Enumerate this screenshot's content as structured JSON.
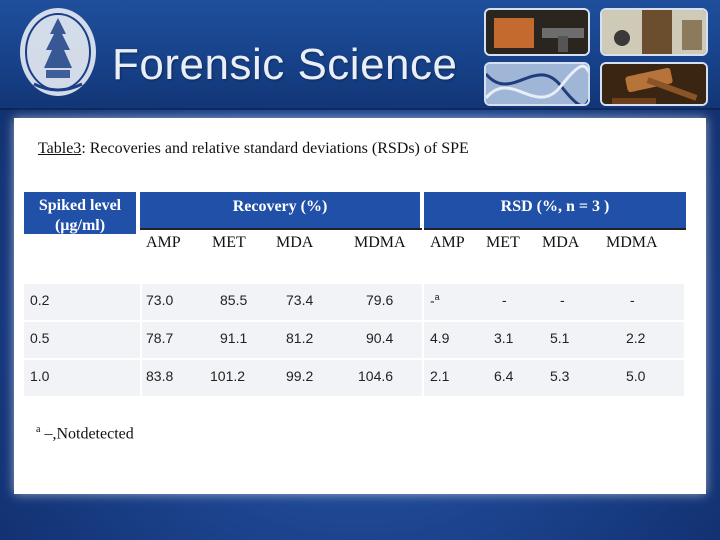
{
  "banner": {
    "title": "Forensic Science"
  },
  "caption": {
    "label": "Table3",
    "text": ": Recoveries and relative standard deviations (RSDs) of SPE"
  },
  "table": {
    "spiked_header_line1": "Spiked level",
    "spiked_header_line2": "(µg/ml)",
    "recovery_header": "Recovery (%)",
    "rsd_header": "RSD (%, n = 3 )",
    "sub_headers": [
      "AMP",
      "MET",
      "MDA",
      "MDMA",
      "AMP",
      "MET",
      "MDA",
      "MDMA"
    ],
    "rows": [
      {
        "level": "0.2",
        "values": [
          "73.0",
          "85.5",
          "73.4",
          "79.6",
          "-",
          "-",
          "-",
          "-"
        ],
        "first_rsd_sup": "a"
      },
      {
        "level": "0.5",
        "values": [
          "78.7",
          "91.1",
          "81.2",
          "90.4",
          "4.9",
          "3.1",
          "5.1",
          "2.2"
        ]
      },
      {
        "level": "1.0",
        "values": [
          "83.8",
          "101.2",
          "99.2",
          "104.6",
          "2.1",
          "6.4",
          "5.3",
          "5.0"
        ]
      }
    ]
  },
  "footnote": {
    "sup": "a",
    "text": " –,Notdetected"
  },
  "colors": {
    "header_blue": "#2050a8",
    "background_blue": "#1d4590"
  }
}
